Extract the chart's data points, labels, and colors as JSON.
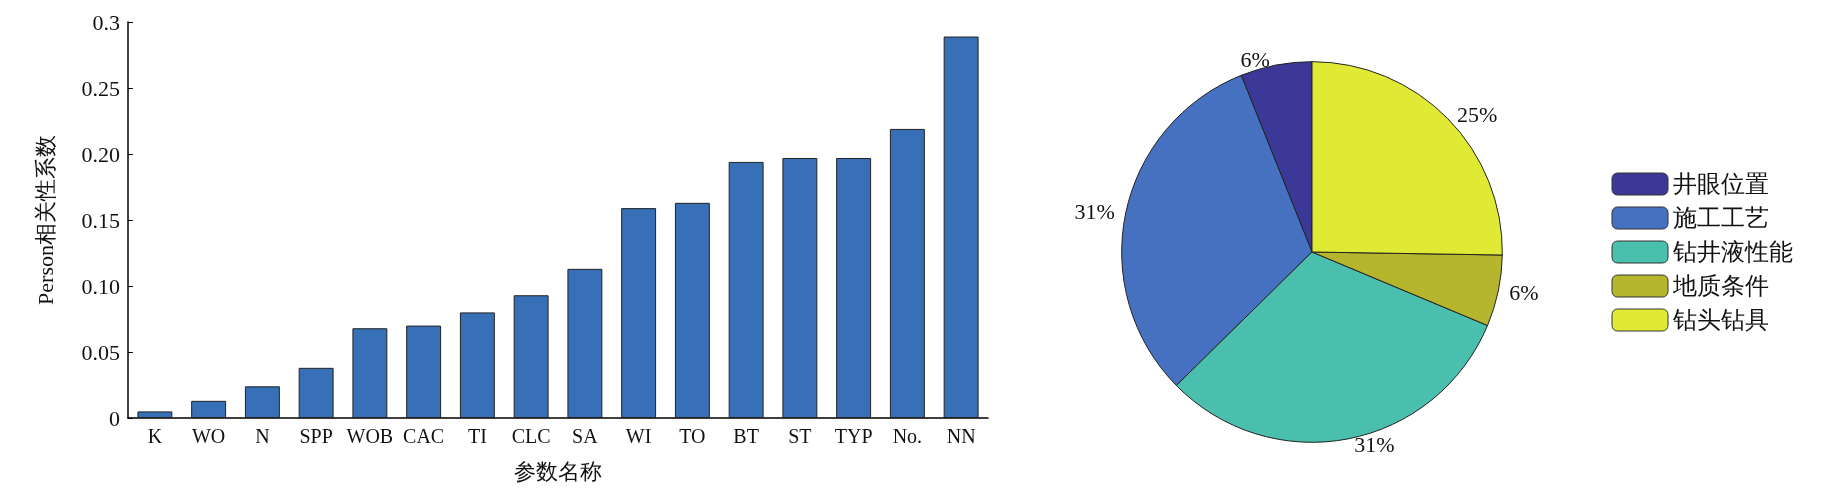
{
  "chart_data": [
    {
      "type": "bar",
      "xlabel": "参数名称",
      "ylabel": "Person相关性系数",
      "categories": [
        "K",
        "WO",
        "N",
        "SPP",
        "WOB",
        "CAC",
        "TI",
        "CLC",
        "SA",
        "WI",
        "TO",
        "BT",
        "ST",
        "TYP",
        "No.",
        "NN"
      ],
      "values": [
        0.005,
        0.013,
        0.024,
        0.038,
        0.068,
        0.07,
        0.08,
        0.093,
        0.113,
        0.159,
        0.163,
        0.194,
        0.197,
        0.197,
        0.219,
        0.289
      ],
      "color": "#3870b8",
      "ylim": [
        0,
        0.3
      ],
      "yticks": [
        0,
        0.05,
        {
          "value": 0.1,
          "label": "0.10"
        },
        0.15,
        {
          "value": 0.2,
          "label": "0.20"
        },
        0.25,
        0.3
      ],
      "grid": false,
      "legend": false
    },
    {
      "type": "pie",
      "categories": [
        "井眼位置",
        "施工工艺",
        "钻井液性能",
        "地质条件",
        "钻头钻具"
      ],
      "values": [
        6,
        31,
        31,
        6,
        25
      ],
      "value_labels": [
        "6%",
        "31%",
        "31%",
        "6%",
        "25%"
      ],
      "colors": [
        "#3c3898",
        "#4670c0",
        "#4bbfad",
        "#b5b52e",
        "#e0ea34"
      ],
      "legend": "right"
    }
  ]
}
